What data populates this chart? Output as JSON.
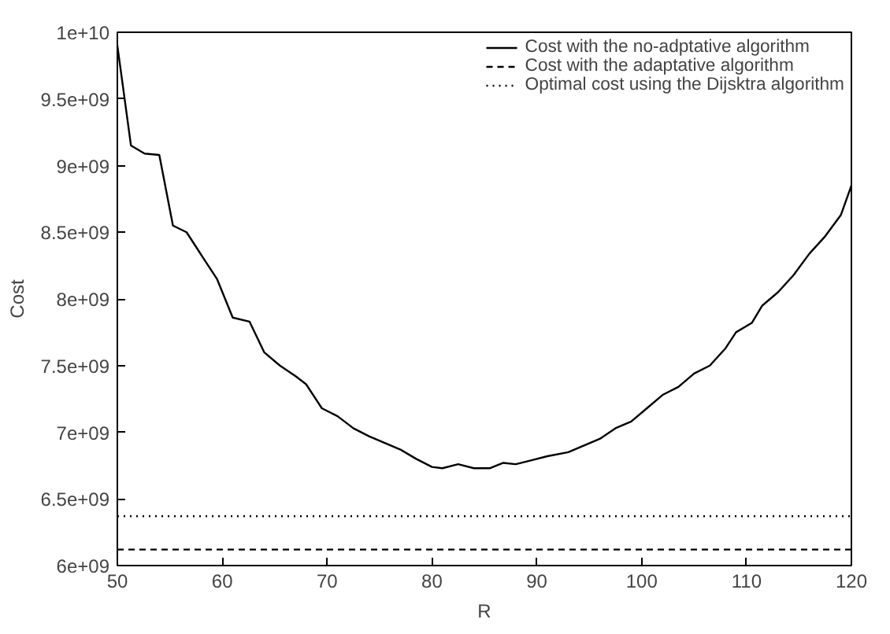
{
  "chart_data": {
    "type": "line",
    "xlabel": "R",
    "ylabel": "Cost",
    "xlim": [
      50,
      120
    ],
    "ylim": [
      6000000000,
      10000000000
    ],
    "xticks": [
      50,
      60,
      70,
      80,
      90,
      100,
      110,
      120
    ],
    "yticks": [
      {
        "value": 6000000000,
        "label": "6e+09"
      },
      {
        "value": 6500000000,
        "label": "6.5e+09"
      },
      {
        "value": 7000000000,
        "label": "7e+09"
      },
      {
        "value": 7500000000,
        "label": "7.5e+09"
      },
      {
        "value": 8000000000,
        "label": "8e+09"
      },
      {
        "value": 8500000000,
        "label": "8.5e+09"
      },
      {
        "value": 9000000000,
        "label": "9e+09"
      },
      {
        "value": 9500000000,
        "label": "9.5e+09"
      },
      {
        "value": 10000000000,
        "label": "1e+10"
      }
    ],
    "grid": false,
    "legend": "top right",
    "marker": "none",
    "series": [
      {
        "name": "Cost with the no-adptative algorithm",
        "color": "#000000",
        "line_style": "solid",
        "x": [
          50,
          51.3,
          52.6,
          54,
          55.3,
          56.6,
          58,
          59.5,
          61,
          62.6,
          64,
          65.5,
          67,
          68,
          69.5,
          71,
          72.5,
          74,
          75.5,
          77,
          78.5,
          80,
          81,
          82.5,
          84,
          85.5,
          86.8,
          88,
          89.5,
          91,
          93,
          94.5,
          96,
          97.5,
          99,
          100.5,
          102,
          103.5,
          105,
          106.5,
          108,
          109,
          110.5,
          111.5,
          113,
          114.5,
          116,
          117.5,
          119,
          120
        ],
        "values": [
          9900000000,
          9150000000,
          9090000000,
          9080000000,
          8550000000,
          8500000000,
          8330000000,
          8150000000,
          7860000000,
          7830000000,
          7600000000,
          7500000000,
          7420000000,
          7360000000,
          7180000000,
          7120000000,
          7030000000,
          6970000000,
          6920000000,
          6870000000,
          6800000000,
          6740000000,
          6730000000,
          6760000000,
          6730000000,
          6730000000,
          6770000000,
          6760000000,
          6790000000,
          6820000000,
          6850000000,
          6900000000,
          6950000000,
          7030000000,
          7080000000,
          7180000000,
          7280000000,
          7340000000,
          7440000000,
          7500000000,
          7630000000,
          7750000000,
          7820000000,
          7950000000,
          8050000000,
          8180000000,
          8340000000,
          8470000000,
          8630000000,
          8850000000
        ]
      },
      {
        "name": "Cost with the adaptative algorithm",
        "color": "#000000",
        "line_style": "dashed",
        "x": [
          50,
          120
        ],
        "values": [
          6120000000,
          6120000000
        ]
      },
      {
        "name": "Optimal cost using the Dijsktra algorithm",
        "color": "#000000",
        "line_style": "dotted",
        "x": [
          50,
          120
        ],
        "values": [
          6370000000,
          6370000000
        ]
      }
    ]
  }
}
